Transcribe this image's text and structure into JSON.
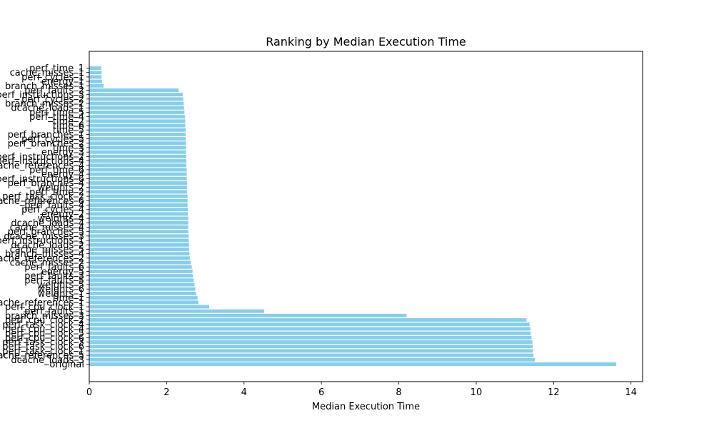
{
  "chart_data": {
    "type": "bar",
    "orientation": "horizontal",
    "title": "Ranking by Median Execution Time",
    "xlabel": "Median Execution Time",
    "ylabel": "",
    "xlim": [
      0,
      14.3
    ],
    "x_ticks": [
      "0",
      "2",
      "4",
      "6",
      "8",
      "10",
      "12",
      "14"
    ],
    "bar_color": "#87ceeb",
    "grid": false,
    "categories": [
      "original",
      "dcache_loads_3",
      "cache_references_5",
      "perf_task_clock_1",
      "perf_task_clock_6",
      "perf_task_clock_3",
      "perf_cpu_clock_6",
      "perf_cpu_clock_5",
      "perf_cpu_clock_4",
      "perf_task_clock_4",
      "perf_cpu_clock_2",
      "branch_misses_3",
      "perf_faults_1",
      "perf_cpu_clock_1",
      "cache_references_1",
      "time_1",
      "weights_1",
      "weights_6",
      "weights_5",
      "perf_faults_5",
      "perf_faults_3",
      "energy_5",
      "perf_faults_6",
      "cache_misses_2",
      "cache_references_2",
      "branch_misses_4",
      "cache_misses_5",
      "dcache_loads_2",
      "perf_instructions_1",
      "dcache_misses_3",
      "perf_branches_5",
      "cache_misses_4",
      "dcache_loads_4",
      "weights_4",
      "energy_2",
      "perf_cycles_4",
      "perf_faults_4",
      "cache_references_6",
      "perf_task_clock_2",
      "perf_time_2",
      "weights_2",
      "perf_branches_4",
      "perf_instructions_6",
      "energy_4",
      "perf_time_6",
      "cache_references_4",
      "perf_instructions_4",
      "perf_instructions_2",
      "energy_3",
      "time_3",
      "perf_branches_2",
      "perf_cycles_5",
      "perf_branches_1",
      "time_5",
      "time_6",
      "time_2",
      "perf_time_4",
      "perf_time_5",
      "dcache_loads_1",
      "branch_misses_2",
      "perf_cycles_2",
      "perf_instructions_3",
      "perf_faults_2",
      "branch_misses_1",
      "energy_1",
      "perf_cycles_1",
      "cache_misses_1",
      "perf_time_1"
    ],
    "values": [
      13.62,
      11.52,
      11.48,
      11.47,
      11.46,
      11.45,
      11.43,
      11.41,
      11.4,
      11.38,
      11.3,
      8.2,
      4.52,
      3.1,
      2.82,
      2.8,
      2.76,
      2.74,
      2.72,
      2.7,
      2.68,
      2.67,
      2.65,
      2.62,
      2.6,
      2.59,
      2.58,
      2.58,
      2.57,
      2.57,
      2.56,
      2.56,
      2.56,
      2.56,
      2.55,
      2.55,
      2.54,
      2.54,
      2.54,
      2.53,
      2.53,
      2.53,
      2.52,
      2.52,
      2.52,
      2.51,
      2.51,
      2.51,
      2.5,
      2.5,
      2.5,
      2.49,
      2.49,
      2.49,
      2.48,
      2.48,
      2.47,
      2.46,
      2.45,
      2.44,
      2.43,
      2.42,
      2.31,
      0.37,
      0.33,
      0.32,
      0.32,
      0.31
    ]
  }
}
